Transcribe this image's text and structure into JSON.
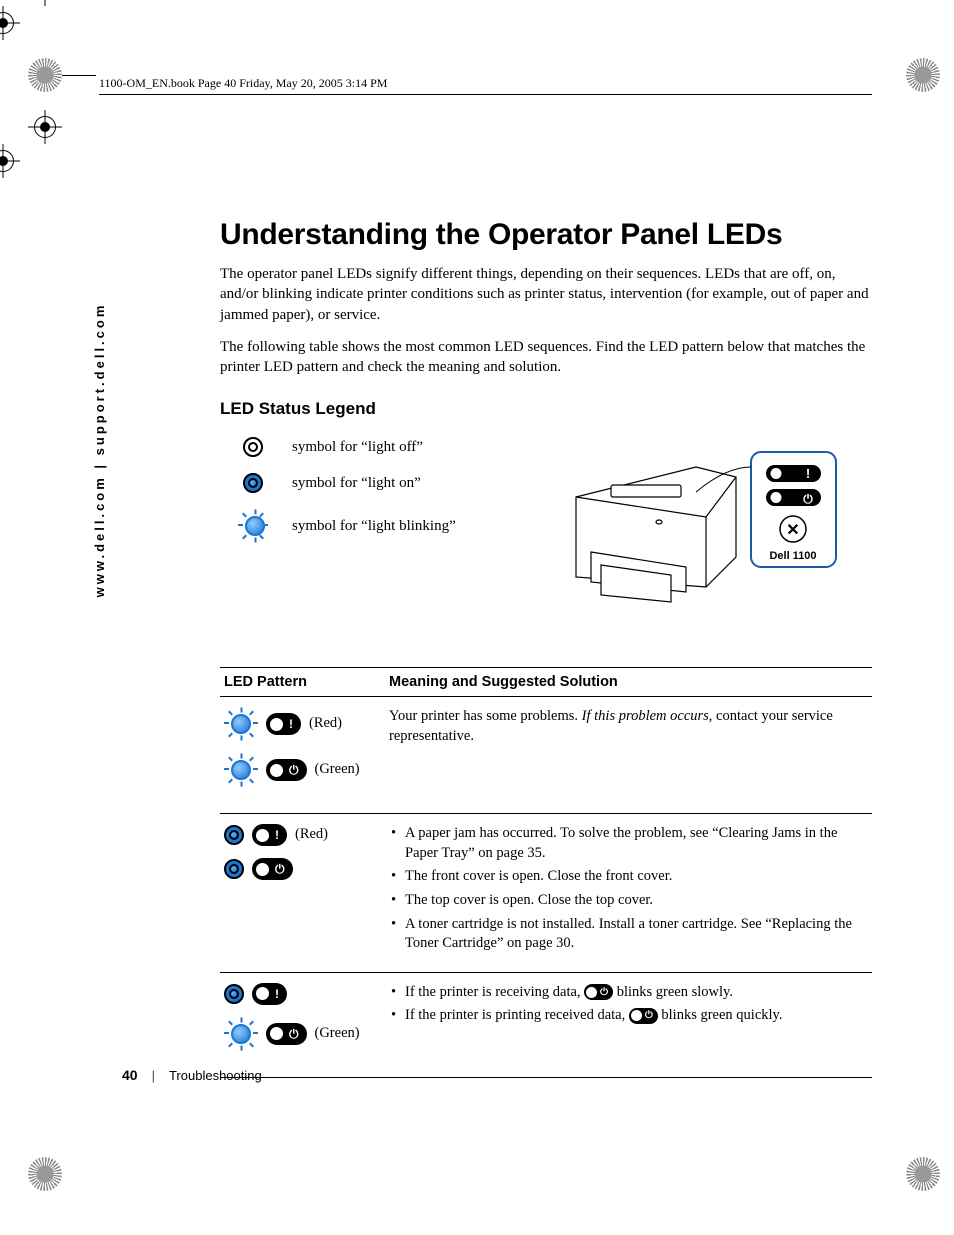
{
  "header": {
    "running_head": "1100-OM_EN.book  Page 40  Friday, May 20, 2005  3:14 PM"
  },
  "side_url": "www.dell.com | support.dell.com",
  "title": "Understanding the Operator Panel LEDs",
  "intro_paragraphs": [
    "The operator panel LEDs signify different things, depending on their sequences. LEDs that are off, on, and/or blinking indicate printer conditions such as printer status, intervention (for example, out of paper and jammed paper), or service.",
    "The following table shows the most common LED sequences. Find the LED pattern below that matches the printer LED pattern and check the meaning and solution."
  ],
  "legend": {
    "heading": "LED Status Legend",
    "items": [
      {
        "state": "off",
        "label": "symbol for “light off”"
      },
      {
        "state": "on",
        "label": "symbol for “light on”"
      },
      {
        "state": "blink",
        "label": "symbol for “light blinking”"
      }
    ],
    "printer_label": "Dell 1100"
  },
  "table": {
    "columns": [
      "LED Pattern",
      "Meaning and Suggested Solution"
    ],
    "rows": [
      {
        "patterns": [
          {
            "led": "blink",
            "icon": "alert",
            "color_label": "(Red)"
          },
          {
            "led": "blink",
            "icon": "power",
            "color_label": "(Green)"
          }
        ],
        "meaning_html": "Your printer has some problems. <span class='ital'>If this problem occurs,</span> contact your service representative."
      },
      {
        "patterns": [
          {
            "led": "on",
            "icon": "alert",
            "color_label": "(Red)"
          },
          {
            "led": "on",
            "icon": "power",
            "color_label": ""
          }
        ],
        "meaning_list": [
          "A paper jam has occurred. To solve the problem, see “Clearing Jams in the Paper Tray” on page 35.",
          "The front cover is open. Close the front cover.",
          "The top cover is open. Close the top cover.",
          "A toner cartridge is not installed. Install a toner cartridge. See “Replacing the Toner Cartridge” on page 30."
        ]
      },
      {
        "patterns": [
          {
            "led": "on",
            "icon": "alert",
            "color_label": ""
          },
          {
            "led": "blink",
            "icon": "power",
            "color_label": "(Green)"
          }
        ],
        "meaning_list_inline": [
          {
            "pre": "If the printer is receiving data, ",
            "badge_icon": "power",
            "post": " blinks green slowly."
          },
          {
            "pre": "If the printer is printing received data, ",
            "badge_icon": "power",
            "post": " blinks green quickly."
          }
        ]
      }
    ]
  },
  "footer": {
    "page_number": "40",
    "section": "Troubleshooting"
  },
  "colors": {
    "led_blue": "#1976d2",
    "text": "#000000",
    "background": "#ffffff"
  }
}
